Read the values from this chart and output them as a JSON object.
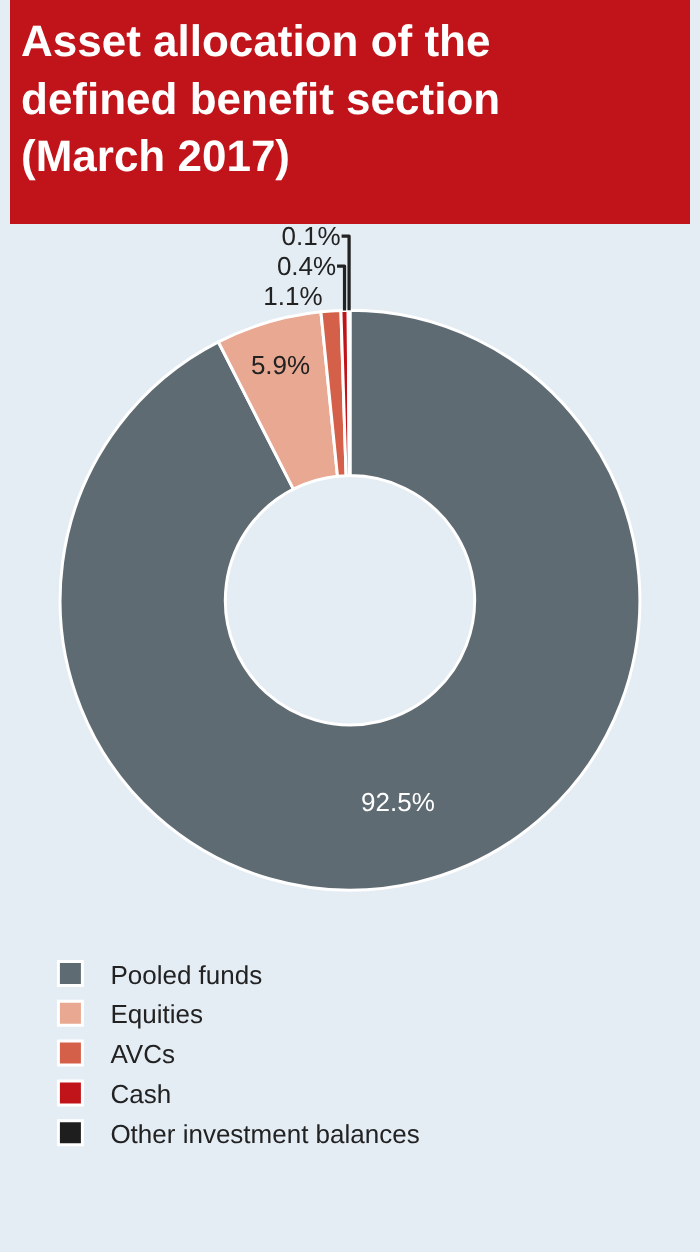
{
  "chart_data": {
    "type": "donut",
    "title": "Asset allocation of the defined benefit section (March 2017)",
    "categories": [
      "Pooled funds",
      "Equities",
      "AVCs",
      "Cash",
      "Other investment balances"
    ],
    "values": [
      92.5,
      5.9,
      1.1,
      0.4,
      0.1
    ],
    "value_labels": [
      "92.5%",
      "5.9%",
      "1.1%",
      "0.4%",
      "0.1%"
    ],
    "colors": [
      "#5f6b73",
      "#e8a892",
      "#d4604a",
      "#c0141a",
      "#1e1e1e"
    ],
    "legend": "bottom left"
  }
}
